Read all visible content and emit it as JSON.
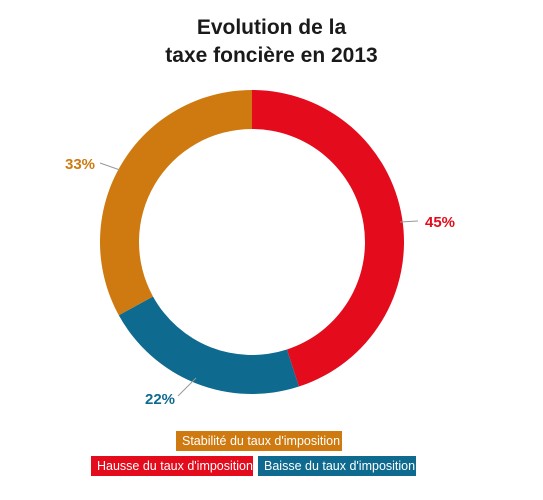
{
  "chart_data": {
    "type": "pie",
    "donut": true,
    "title_lines": [
      "Evolution de la",
      "taxe foncière en 2013"
    ],
    "slices": [
      {
        "label": "Hausse du taux d'imposition",
        "value": 45,
        "display": "45%",
        "color": "#e30b1c"
      },
      {
        "label": "Baisse du taux d'imposition",
        "value": 22,
        "display": "22%",
        "color": "#0f6a8f"
      },
      {
        "label": "Stabilité du taux d'imposition",
        "value": 33,
        "display": "33%",
        "color": "#cf7a10"
      }
    ],
    "legend_placement": "bottom"
  }
}
